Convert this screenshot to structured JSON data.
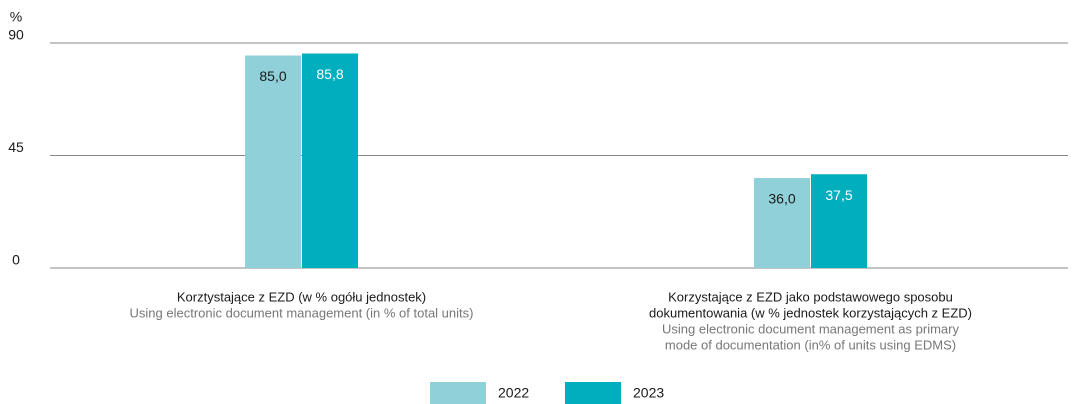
{
  "chart_data": {
    "type": "bar",
    "y_label": "%",
    "categories": [
      [
        "Korztystające z EZD (w % ogółu jednostek)"
      ],
      [
        "Korzystające z EZD jako podstawowego sposobu",
        "dokumentowania  (w % jednostek korzystających z EZD)"
      ]
    ],
    "category_translations": [
      [
        "Using electronic document management (in % of total units)"
      ],
      [
        "Using electronic document management as primary",
        "mode of documentation (in% of units using EDMS)"
      ]
    ],
    "series": [
      {
        "name": "2022",
        "color": "#8fd0d9",
        "values": [
          85.0,
          36.0
        ],
        "value_labels": [
          "85,0",
          "36,0"
        ]
      },
      {
        "name": "2023",
        "color": "#00aebd",
        "values": [
          85.8,
          37.5
        ],
        "value_labels": [
          "85,8",
          "37,5"
        ]
      }
    ],
    "ylim": [
      0,
      90
    ],
    "yticks": [
      0,
      45,
      90
    ],
    "grid": true
  }
}
